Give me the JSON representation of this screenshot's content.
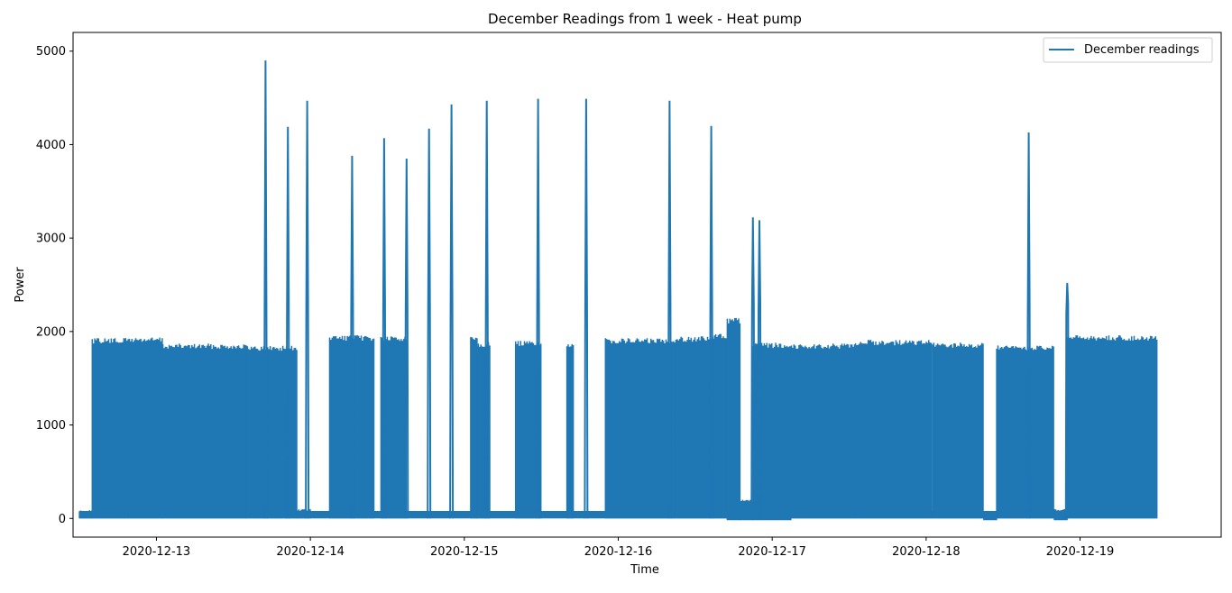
{
  "chart_data": {
    "type": "line",
    "title": "December Readings from 1 week - Heat pump",
    "xlabel": "Time",
    "ylabel": "Power",
    "x_range": [
      "2020-12-12T11:00:00",
      "2020-12-19T22:00:00"
    ],
    "ylim": [
      -200,
      5200
    ],
    "yticks": [
      0,
      1000,
      2000,
      3000,
      4000,
      5000
    ],
    "xticks": [
      "2020-12-13",
      "2020-12-14",
      "2020-12-15",
      "2020-12-16",
      "2020-12-17",
      "2020-12-18",
      "2020-12-19"
    ],
    "grid": false,
    "legend": {
      "placement": "top-right",
      "entries": [
        "December readings"
      ]
    },
    "series_color": "#1f77b4",
    "data_start": "2020-12-12T12:00:00",
    "data_end": "2020-12-19T12:00:00",
    "series": [
      {
        "name": "December readings",
        "description_note": "",
        "baseline": 80,
        "segments": [
          {
            "start": "2020-12-12T12:00:00",
            "end": "2020-12-12T14:00:00",
            "low": 0,
            "high": 90
          },
          {
            "start": "2020-12-12T14:00:00",
            "end": "2020-12-12T19:00:00",
            "low": 0,
            "high": 1930
          },
          {
            "start": "2020-12-12T19:00:00",
            "end": "2020-12-13T01:00:00",
            "low": 0,
            "high": 1940
          },
          {
            "start": "2020-12-13T01:00:00",
            "end": "2020-12-13T14:00:00",
            "low": 0,
            "high": 1870
          },
          {
            "start": "2020-12-13T14:00:00",
            "end": "2020-12-13T22:00:00",
            "low": 0,
            "high": 1850
          },
          {
            "start": "2020-12-13T22:00:00",
            "end": "2020-12-14T00:00:00",
            "low": 0,
            "high": 100
          },
          {
            "start": "2020-12-14T03:00:00",
            "end": "2020-12-14T10:00:00",
            "low": 0,
            "high": 1960
          },
          {
            "start": "2020-12-14T11:00:00",
            "end": "2020-12-14T15:00:00",
            "low": 0,
            "high": 1950
          },
          {
            "start": "2020-12-15T01:00:00",
            "end": "2020-12-15T02:00:00",
            "low": 0,
            "high": 1970
          },
          {
            "start": "2020-12-15T02:00:00",
            "end": "2020-12-15T04:00:00",
            "low": 0,
            "high": 1890
          },
          {
            "start": "2020-12-15T08:00:00",
            "end": "2020-12-15T12:00:00",
            "low": 0,
            "high": 1900
          },
          {
            "start": "2020-12-15T16:00:00",
            "end": "2020-12-15T17:00:00",
            "low": 0,
            "high": 1870
          },
          {
            "start": "2020-12-15T22:00:00",
            "end": "2020-12-16T09:00:00",
            "low": 0,
            "high": 1930
          },
          {
            "start": "2020-12-16T09:00:00",
            "end": "2020-12-16T15:00:00",
            "low": 0,
            "high": 1950
          },
          {
            "start": "2020-12-16T15:00:00",
            "end": "2020-12-16T17:00:00",
            "low": 0,
            "high": 1980
          },
          {
            "start": "2020-12-16T17:00:00",
            "end": "2020-12-16T19:00:00",
            "low": -20,
            "high": 2150
          },
          {
            "start": "2020-12-16T19:00:00",
            "end": "2020-12-16T21:00:00",
            "low": -20,
            "high": 200
          },
          {
            "start": "2020-12-16T21:00:00",
            "end": "2020-12-17T03:00:00",
            "low": -20,
            "high": 1880
          },
          {
            "start": "2020-12-17T03:00:00",
            "end": "2020-12-17T13:00:00",
            "low": 0,
            "high": 1870
          },
          {
            "start": "2020-12-17T13:00:00",
            "end": "2020-12-18T01:00:00",
            "low": 0,
            "high": 1910
          },
          {
            "start": "2020-12-18T01:00:00",
            "end": "2020-12-18T09:00:00",
            "low": 0,
            "high": 1880
          },
          {
            "start": "2020-12-18T09:00:00",
            "end": "2020-12-18T11:00:00",
            "low": -20,
            "high": 30
          },
          {
            "start": "2020-12-18T11:00:00",
            "end": "2020-12-18T20:00:00",
            "low": 0,
            "high": 1850
          },
          {
            "start": "2020-12-18T20:00:00",
            "end": "2020-12-18T22:00:00",
            "low": -20,
            "high": 100
          },
          {
            "start": "2020-12-18T22:00:00",
            "end": "2020-12-19T12:00:00",
            "low": 0,
            "high": 1960
          }
        ],
        "spikes": [
          {
            "t": "2020-12-13T17:00:00",
            "value": 4900
          },
          {
            "t": "2020-12-13T20:30:00",
            "value": 4190
          },
          {
            "t": "2020-12-13T23:30:00",
            "value": 4470
          },
          {
            "t": "2020-12-14T06:30:00",
            "value": 3880
          },
          {
            "t": "2020-12-14T11:30:00",
            "value": 4070
          },
          {
            "t": "2020-12-14T15:00:00",
            "value": 3850
          },
          {
            "t": "2020-12-14T18:30:00",
            "value": 4170
          },
          {
            "t": "2020-12-14T22:00:00",
            "value": 4430
          },
          {
            "t": "2020-12-15T03:30:00",
            "value": 4470
          },
          {
            "t": "2020-12-15T11:30:00",
            "value": 4490
          },
          {
            "t": "2020-12-15T19:00:00",
            "value": 4490
          },
          {
            "t": "2020-12-16T08:00:00",
            "value": 4470
          },
          {
            "t": "2020-12-16T14:30:00",
            "value": 4200
          },
          {
            "t": "2020-12-16T21:00:00",
            "value": 3220
          },
          {
            "t": "2020-12-16T22:00:00",
            "value": 3190
          },
          {
            "t": "2020-12-18T16:00:00",
            "value": 4130
          },
          {
            "t": "2020-12-18T22:00:00",
            "value": 2520
          }
        ]
      }
    ]
  }
}
